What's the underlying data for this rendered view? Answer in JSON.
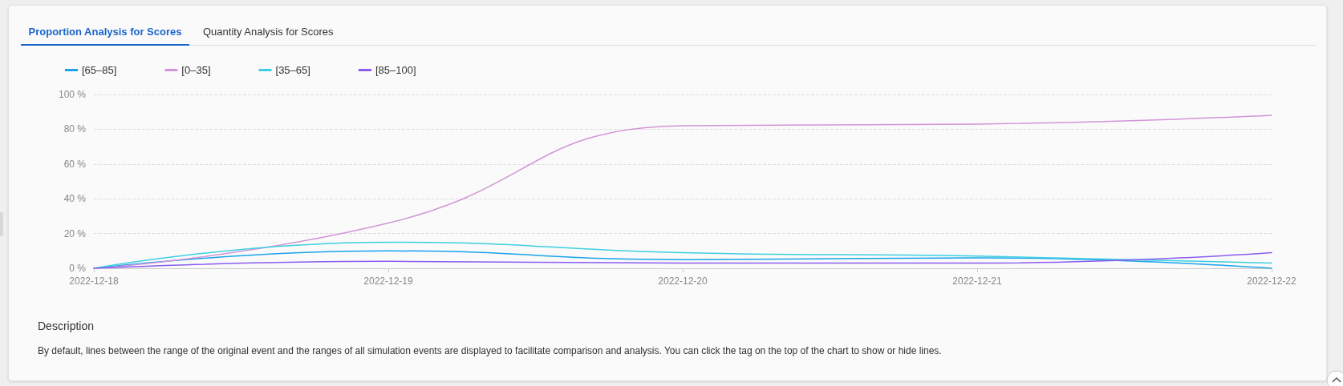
{
  "chart_data": {
    "type": "line",
    "title": "Proportion Analysis for Scores",
    "annotations": [
      "Quantity Analysis for Scores",
      "Description",
      "By default, lines between the range of the original event and the ranges of all simulation events are displayed to facilitate comparison and analysis. You can click the tag on the top of the chart to show or hide lines."
    ],
    "categories": [
      "2022-12-18",
      "2022-12-19",
      "2022-12-20",
      "2022-12-21",
      "2022-12-22"
    ],
    "series": [
      {
        "name": "[65–85]",
        "color": "#1aa3ea",
        "values": [
          0,
          10,
          5,
          6,
          0
        ]
      },
      {
        "name": "[0–35]",
        "color": "#d295d8",
        "values": [
          0,
          26,
          82,
          83,
          88
        ]
      },
      {
        "name": "[35–65]",
        "color": "#3ccfe2",
        "values": [
          0,
          15,
          9,
          7,
          3
        ]
      },
      {
        "name": "[85–100]",
        "color": "#8a5cf0",
        "values": [
          0,
          4,
          3,
          3,
          9
        ]
      }
    ],
    "ylim": [
      0,
      100
    ],
    "yticks": [
      {
        "value": 0,
        "label": "0 %"
      },
      {
        "value": 20,
        "label": "20 %"
      },
      {
        "value": 40,
        "label": "40 %"
      },
      {
        "value": 60,
        "label": "60 %"
      },
      {
        "value": 80,
        "label": "80 %"
      },
      {
        "value": 100,
        "label": "100 %"
      }
    ],
    "grid": "y",
    "legend": "top left",
    "marker": "none",
    "line_style": "solid"
  }
}
